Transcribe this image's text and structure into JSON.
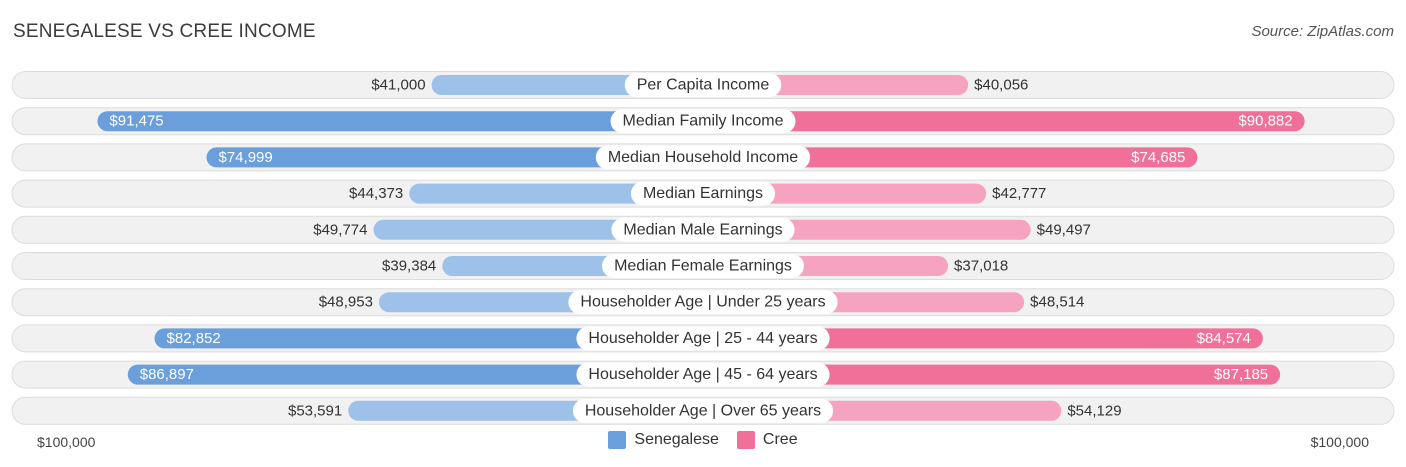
{
  "title": "SENEGALESE VS CREE INCOME",
  "source": "Source: ZipAtlas.com",
  "colors": {
    "left_strong": "#6a9fdc",
    "left_light": "#9ec1e9",
    "right_strong": "#f0709a",
    "right_light": "#f5a3c0"
  },
  "legend": {
    "left_label": "Senegalese",
    "right_label": "Cree"
  },
  "axis": {
    "left_label": "$100,000",
    "right_label": "$100,000"
  },
  "chart_data": {
    "type": "bar",
    "orientation": "diverging-horizontal",
    "title": "SENEGALESE VS CREE INCOME",
    "xlim": [
      0,
      100000
    ],
    "categories": [
      "Per Capita Income",
      "Median Family Income",
      "Median Household Income",
      "Median Earnings",
      "Median Male Earnings",
      "Median Female Earnings",
      "Householder Age | Under 25 years",
      "Householder Age | 25 - 44 years",
      "Householder Age | 45 - 64 years",
      "Householder Age | Over 65 years"
    ],
    "series": [
      {
        "name": "Senegalese",
        "values": [
          41000,
          91475,
          74999,
          44373,
          49774,
          39384,
          48953,
          82852,
          86897,
          53591
        ],
        "labels": [
          "$41,000",
          "$91,475",
          "$74,999",
          "$44,373",
          "$49,774",
          "$39,384",
          "$48,953",
          "$82,852",
          "$86,897",
          "$53,591"
        ]
      },
      {
        "name": "Cree",
        "values": [
          40056,
          90882,
          74685,
          42777,
          49497,
          37018,
          48514,
          84574,
          87185,
          54129
        ],
        "labels": [
          "$40,056",
          "$90,882",
          "$74,685",
          "$42,777",
          "$49,497",
          "$37,018",
          "$48,514",
          "$84,574",
          "$87,185",
          "$54,129"
        ]
      }
    ]
  }
}
